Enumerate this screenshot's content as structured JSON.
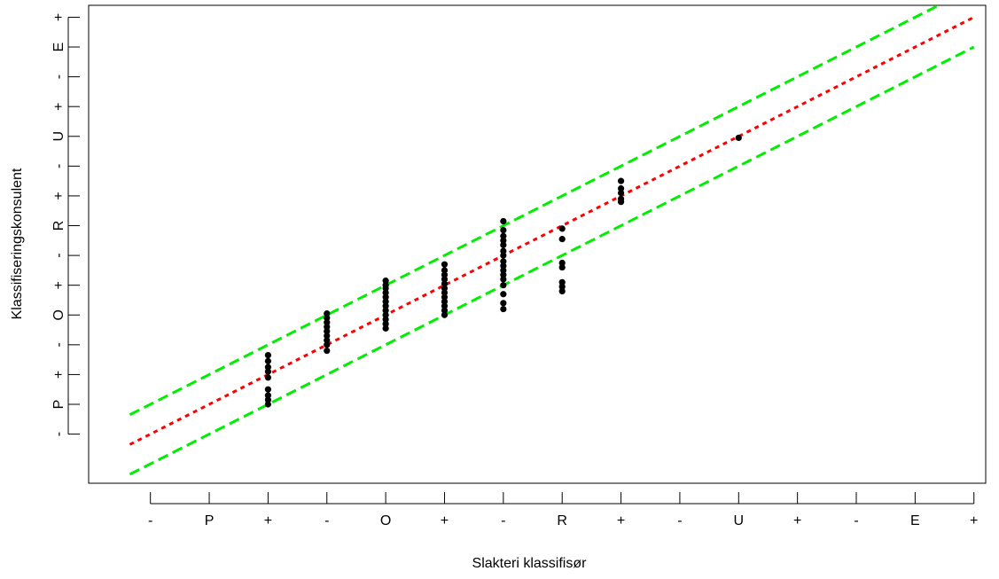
{
  "chart_data": {
    "type": "scatter",
    "title": "",
    "xlabel": "Slakteri klassifisør",
    "ylabel": "Klassifiseringskonsulent",
    "x_ticks": [
      {
        "value": 1,
        "label": "-"
      },
      {
        "value": 2,
        "label": "P"
      },
      {
        "value": 3,
        "label": "+"
      },
      {
        "value": 4,
        "label": "-"
      },
      {
        "value": 5,
        "label": "O"
      },
      {
        "value": 6,
        "label": "+"
      },
      {
        "value": 7,
        "label": "-"
      },
      {
        "value": 8,
        "label": "R"
      },
      {
        "value": 9,
        "label": "+"
      },
      {
        "value": 10,
        "label": "-"
      },
      {
        "value": 11,
        "label": "U"
      },
      {
        "value": 12,
        "label": "+"
      },
      {
        "value": 13,
        "label": "-"
      },
      {
        "value": 14,
        "label": "E"
      },
      {
        "value": 15,
        "label": "+"
      }
    ],
    "y_ticks": [
      {
        "value": 1,
        "label": "-"
      },
      {
        "value": 2,
        "label": "P"
      },
      {
        "value": 3,
        "label": "+"
      },
      {
        "value": 4,
        "label": "-"
      },
      {
        "value": 5,
        "label": "O"
      },
      {
        "value": 6,
        "label": "+"
      },
      {
        "value": 7,
        "label": "-"
      },
      {
        "value": 8,
        "label": "R"
      },
      {
        "value": 9,
        "label": "+"
      },
      {
        "value": 10,
        "label": "-"
      },
      {
        "value": 11,
        "label": "U"
      },
      {
        "value": 12,
        "label": "+"
      },
      {
        "value": 13,
        "label": "-"
      },
      {
        "value": 14,
        "label": "E"
      },
      {
        "value": 15,
        "label": "+"
      }
    ],
    "xlim": [
      -0.05,
      15.2
    ],
    "ylim": [
      -0.65,
      15.4
    ],
    "grid": false,
    "series": [
      {
        "kind": "points",
        "color": "#000000",
        "points": [
          [
            3,
            2.0
          ],
          [
            3,
            2.15
          ],
          [
            3,
            2.3
          ],
          [
            3,
            2.5
          ],
          [
            3,
            2.9
          ],
          [
            3,
            3.1
          ],
          [
            3,
            3.25
          ],
          [
            3,
            3.45
          ],
          [
            3,
            3.65
          ],
          [
            4,
            3.8
          ],
          [
            4,
            4.0
          ],
          [
            4,
            4.15
          ],
          [
            4,
            4.3
          ],
          [
            4,
            4.45
          ],
          [
            4,
            4.6
          ],
          [
            4,
            4.75
          ],
          [
            4,
            4.9
          ],
          [
            4,
            5.05
          ],
          [
            5,
            4.55
          ],
          [
            5,
            4.7
          ],
          [
            5,
            4.85
          ],
          [
            5,
            5.0
          ],
          [
            5,
            5.15
          ],
          [
            5,
            5.3
          ],
          [
            5,
            5.45
          ],
          [
            5,
            5.6
          ],
          [
            5,
            5.75
          ],
          [
            5,
            5.9
          ],
          [
            5,
            6.0
          ],
          [
            5,
            6.15
          ],
          [
            6,
            5.0
          ],
          [
            6,
            5.15
          ],
          [
            6,
            5.3
          ],
          [
            6,
            5.45
          ],
          [
            6,
            5.6
          ],
          [
            6,
            5.75
          ],
          [
            6,
            5.9
          ],
          [
            6,
            6.05
          ],
          [
            6,
            6.2
          ],
          [
            6,
            6.35
          ],
          [
            6,
            6.5
          ],
          [
            6,
            6.7
          ],
          [
            7,
            5.2
          ],
          [
            7,
            5.4
          ],
          [
            7,
            5.7
          ],
          [
            7,
            6.0
          ],
          [
            7,
            6.2
          ],
          [
            7,
            6.35
          ],
          [
            7,
            6.5
          ],
          [
            7,
            6.65
          ],
          [
            7,
            6.8
          ],
          [
            7,
            7.0
          ],
          [
            7,
            7.15
          ],
          [
            7,
            7.35
          ],
          [
            7,
            7.5
          ],
          [
            7,
            7.65
          ],
          [
            7,
            7.85
          ],
          [
            7,
            8.15
          ],
          [
            8,
            5.8
          ],
          [
            8,
            5.95
          ],
          [
            8,
            6.1
          ],
          [
            8,
            6.6
          ],
          [
            8,
            6.75
          ],
          [
            8,
            7.55
          ],
          [
            8,
            7.9
          ],
          [
            9,
            8.8
          ],
          [
            9,
            8.9
          ],
          [
            9,
            9.1
          ],
          [
            9,
            9.25
          ],
          [
            9,
            9.5
          ],
          [
            11,
            10.95
          ]
        ]
      },
      {
        "kind": "line",
        "color": "#ff0000",
        "dash": "dotted",
        "slope": 1,
        "intercept": 0
      },
      {
        "kind": "line",
        "color": "#00ee00",
        "dash": "dashed",
        "slope": 1,
        "intercept": 1
      },
      {
        "kind": "line",
        "color": "#00ee00",
        "dash": "dashed",
        "slope": 1,
        "intercept": -1
      }
    ]
  }
}
